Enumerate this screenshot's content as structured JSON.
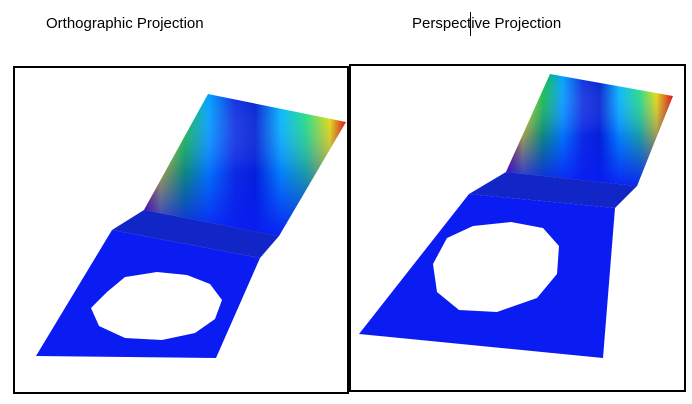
{
  "captions": {
    "left": "Orthographic Projection",
    "right": "Perspective Projection"
  },
  "colors": {
    "base_plate": "#0a1cf2",
    "bend": "#1226c8",
    "border": "#000000",
    "hole": "#ffffff",
    "stress_low": "#0a1cf2",
    "stress_mid": "#00e0ff",
    "stress_high": "#d20000"
  }
}
